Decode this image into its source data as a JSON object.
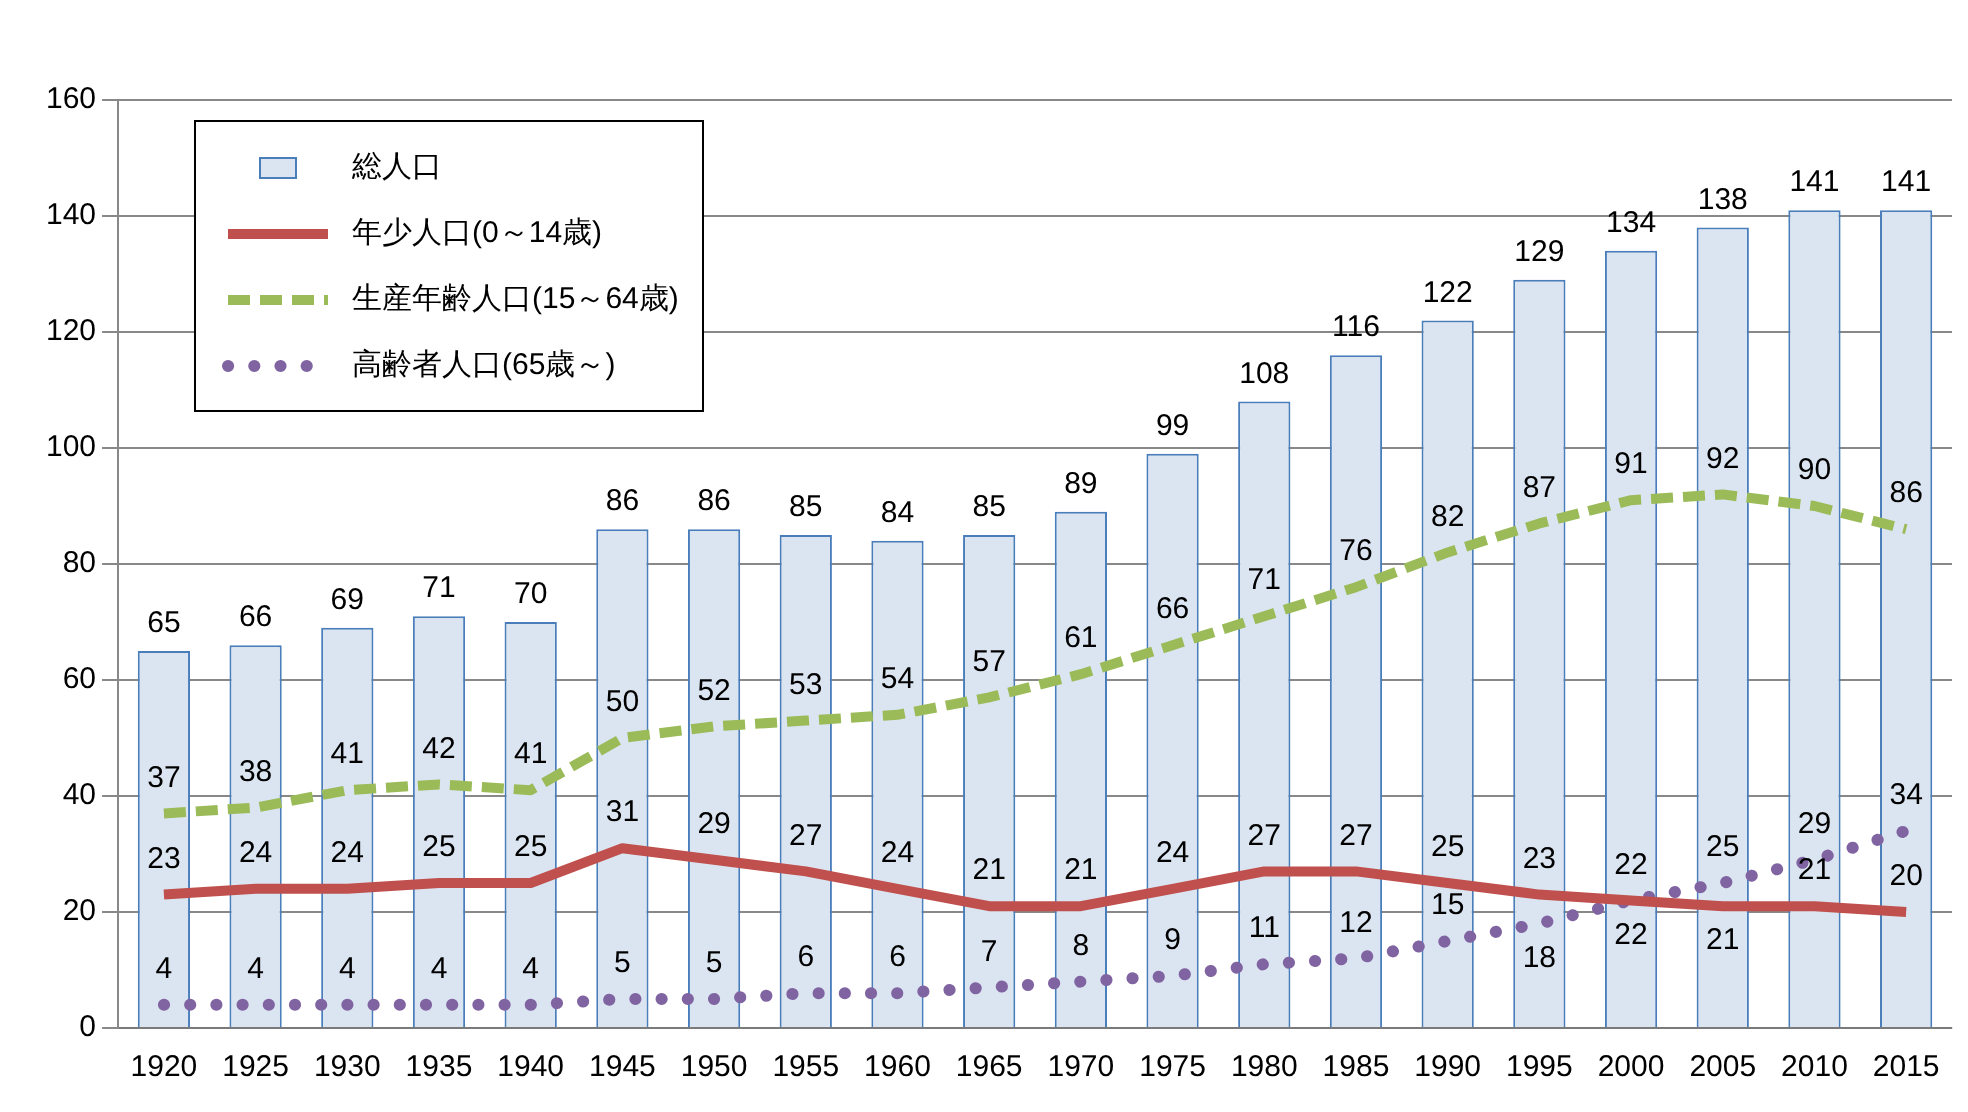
{
  "chart_data": {
    "type": "bar",
    "categories": [
      "1920",
      "1925",
      "1930",
      "1935",
      "1940",
      "1945",
      "1950",
      "1955",
      "1960",
      "1965",
      "1970",
      "1975",
      "1980",
      "1985",
      "1990",
      "1995",
      "2000",
      "2005",
      "2010",
      "2015"
    ],
    "series": [
      {
        "name": "総人口",
        "color": "#dbe5f1",
        "values": [
          65,
          66,
          69,
          71,
          70,
          86,
          86,
          85,
          84,
          85,
          89,
          99,
          108,
          116,
          122,
          129,
          134,
          138,
          141,
          141
        ]
      },
      {
        "name": "年少人口(0～14歳)",
        "type": "line",
        "line_style": "solid",
        "color": "#c0504d",
        "values": [
          23,
          24,
          24,
          25,
          25,
          31,
          29,
          27,
          24,
          21,
          21,
          24,
          27,
          27,
          25,
          23,
          22,
          21,
          21,
          20
        ]
      },
      {
        "name": "生産年齢人口(15～64歳)",
        "type": "line",
        "line_style": "dashed",
        "color": "#9bbb59",
        "values": [
          37,
          38,
          41,
          42,
          41,
          50,
          52,
          53,
          54,
          57,
          61,
          66,
          71,
          76,
          82,
          87,
          91,
          92,
          90,
          86
        ]
      },
      {
        "name": "高齢者人口(65歳～)",
        "type": "line",
        "line_style": "dotted",
        "color": "#8064a2",
        "values": [
          4,
          4,
          4,
          4,
          4,
          5,
          5,
          6,
          6,
          7,
          8,
          9,
          11,
          12,
          15,
          18,
          22,
          25,
          29,
          34
        ]
      }
    ],
    "ylim": [
      0,
      160
    ],
    "yticks": [
      0,
      20,
      40,
      60,
      80,
      100,
      120,
      140,
      160
    ],
    "grid": "y",
    "legend": "top left",
    "data_labels": true
  }
}
